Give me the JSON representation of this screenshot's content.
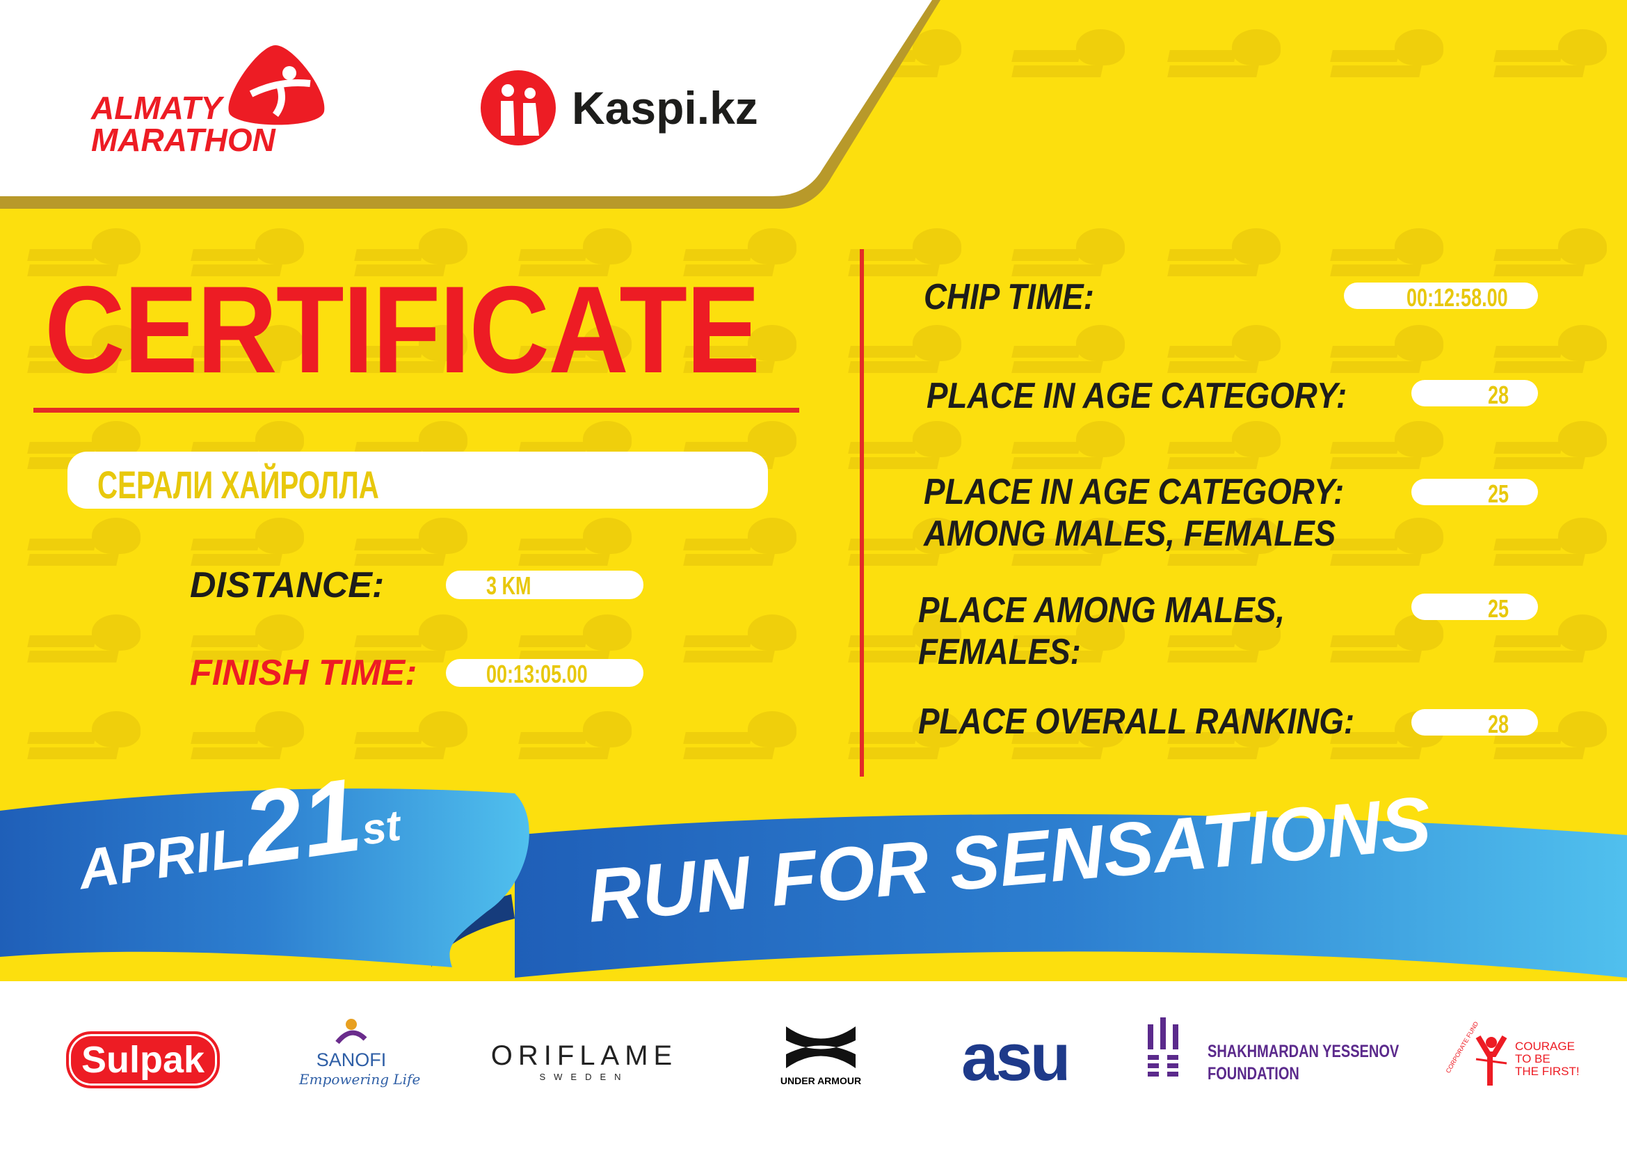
{
  "watermark": "ALMATY MARATHON",
  "header": {
    "logo_line1": "ALMATY",
    "logo_line2": "MARATHON",
    "partner": "Kaspi.kz"
  },
  "certificate": {
    "title": "CERTIFICATE",
    "participant_name": "СЕРАЛИ ХАЙРОЛЛА",
    "distance_label": "DISTANCE:",
    "distance_value": "3 KM",
    "finish_label": "FINISH TIME:",
    "finish_value": "00:13:05.00"
  },
  "results": [
    {
      "label": "CHIP TIME:",
      "value": "00:12:58.00"
    },
    {
      "label": "PLACE IN AGE CATEGORY:",
      "value": "28"
    },
    {
      "label": "PLACE IN AGE CATEGORY:\nAMONG MALES, FEMALES",
      "value": "25"
    },
    {
      "label": "PLACE AMONG MALES,\nFEMALES:",
      "value": "25"
    },
    {
      "label": "PLACE OVERALL RANKING:",
      "value": "28"
    }
  ],
  "banner": {
    "month": "APRIL",
    "day": "21",
    "suffix": "st",
    "slogan": "RUN FOR SENSATIONS"
  },
  "sponsors": {
    "sulpak": "Sulpak",
    "sanofi": "SANOFI",
    "sanofi_tag": "Empowering Life",
    "oriflame": "ORIFLAME",
    "oriflame_sub": "SWEDEN",
    "underarmour": "UNDER ARMOUR",
    "asu": "asu",
    "yessenov": "SHAKHMARDAN YESSENOV\nFOUNDATION",
    "courage_arc": "CORPORATE FUND",
    "courage": "COURAGE\nTO BE\nTHE FIRST!"
  },
  "colors": {
    "yellow": "#fcdf0e",
    "red": "#ed1c24",
    "blue": "#2d7fd0",
    "purple": "#5b2a8c"
  }
}
